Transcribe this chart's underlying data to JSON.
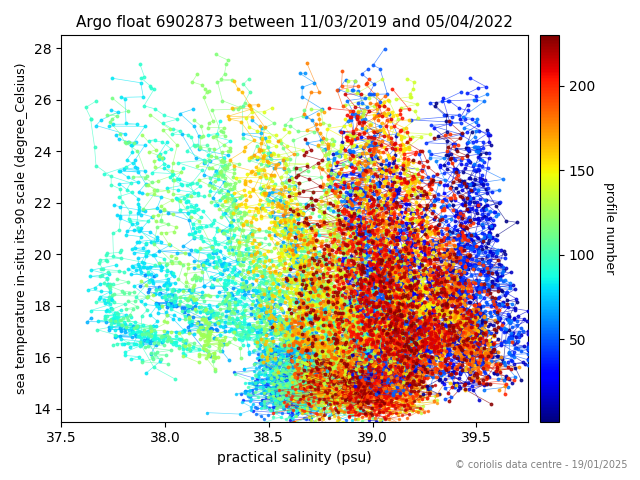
{
  "title": "Argo float 6902873 between 11/03/2019 and 05/04/2022",
  "xlabel": "practical salinity (psu)",
  "ylabel": "sea temperature in-situ its-90 scale (degree_Celsius)",
  "colorbar_label": "profile number",
  "copyright": "© coriolis data centre - 19/01/2025",
  "xlim": [
    37.5,
    39.75
  ],
  "ylim": [
    13.5,
    28.5
  ],
  "xticks": [
    37.5,
    38.0,
    38.5,
    39.0,
    39.5
  ],
  "yticks": [
    14,
    16,
    18,
    20,
    22,
    24,
    26,
    28
  ],
  "colorbar_ticks": [
    50,
    100,
    150,
    200
  ],
  "n_profiles": 230,
  "cmap": "jet",
  "seed": 42,
  "figsize": [
    6.4,
    4.8
  ],
  "dpi": 100
}
